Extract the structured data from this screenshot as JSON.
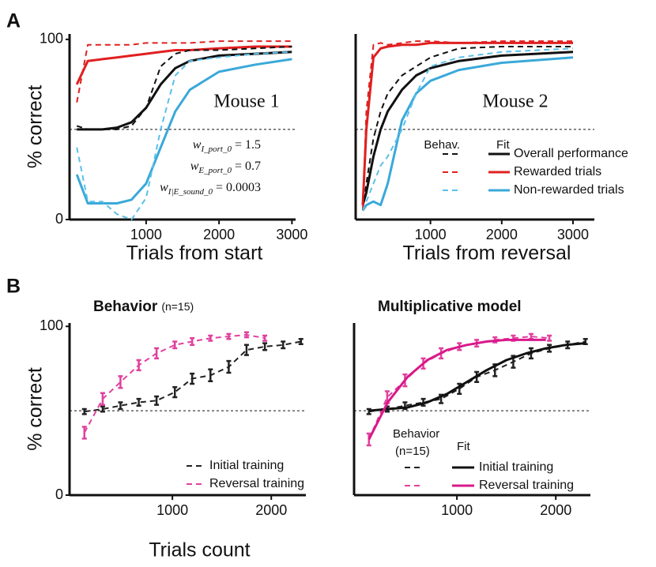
{
  "figure": {
    "panel_labels": [
      "A",
      "B"
    ]
  },
  "chart_data": [
    {
      "type": "line",
      "ylabel": "% correct",
      "xlabel": "Trials from start",
      "annotation": "Mouse 1",
      "weights": [
        {
          "symbol": "w",
          "subscript": "I_port_0",
          "rest": " = 1.5"
        },
        {
          "symbol": "w",
          "subscript": "E_port_0",
          "rest": " = 0.7"
        },
        {
          "symbol": "w",
          "subscript": "I|E_sound_0",
          "rest": " = 0.0003"
        }
      ],
      "xlim": [
        -50,
        3050
      ],
      "ylim": [
        0,
        103
      ],
      "xticks": [
        1000,
        2000,
        3000
      ],
      "yticks": [
        0,
        100
      ],
      "hline": 50,
      "x": [
        50,
        200,
        400,
        600,
        800,
        1000,
        1200,
        1400,
        1600,
        2000,
        2500,
        3000
      ],
      "series": [
        {
          "color": "#111111",
          "dashed": false,
          "values": [
            50,
            50,
            50,
            51,
            54,
            62,
            75,
            84,
            88,
            91,
            92,
            93
          ]
        },
        {
          "color": "#e02020",
          "dashed": false,
          "values": [
            75,
            88,
            89,
            90,
            91,
            92,
            93,
            94,
            94,
            95,
            96,
            96
          ]
        },
        {
          "color": "#3aa9d9",
          "dashed": false,
          "values": [
            25,
            9,
            9,
            9,
            11,
            20,
            40,
            60,
            72,
            82,
            86,
            89
          ]
        },
        {
          "color": "#111111",
          "dashed": true,
          "values": [
            52,
            50,
            50,
            50,
            52,
            62,
            85,
            92,
            94,
            94,
            95,
            96
          ]
        },
        {
          "color": "#e02020",
          "dashed": true,
          "values": [
            65,
            97,
            97,
            97,
            97,
            98,
            98,
            98,
            98,
            99,
            99,
            99
          ]
        },
        {
          "color": "#5bc0e8",
          "dashed": true,
          "values": [
            40,
            10,
            10,
            3,
            0,
            12,
            50,
            80,
            88,
            90,
            92,
            93
          ]
        }
      ]
    },
    {
      "type": "line",
      "xlabel": "Trials from reversal",
      "annotation": "Mouse 2",
      "legend_headers": [
        "Behav.",
        "Fit"
      ],
      "xlim": [
        -50,
        3300
      ],
      "ylim": [
        0,
        103
      ],
      "xticks": [
        1000,
        2000,
        3000
      ],
      "hline": 50,
      "x": [
        50,
        100,
        200,
        300,
        400,
        600,
        800,
        1000,
        1400,
        2000,
        3000
      ],
      "series": [
        {
          "name": "Overall performance",
          "color": "#111111",
          "dashed": false,
          "values": [
            8,
            15,
            35,
            50,
            60,
            72,
            80,
            84,
            88,
            91,
            93
          ]
        },
        {
          "name": "Rewarded trials",
          "color": "#e02020",
          "dashed": false,
          "values": [
            8,
            50,
            90,
            95,
            96,
            97,
            97,
            98,
            98,
            98,
            98
          ]
        },
        {
          "name": "Non-rewarded trials",
          "color": "#3aa9d9",
          "dashed": false,
          "values": [
            5,
            8,
            10,
            8,
            20,
            55,
            70,
            77,
            83,
            87,
            90
          ]
        },
        {
          "color": "#111111",
          "dashed": true,
          "values": [
            5,
            20,
            45,
            60,
            70,
            80,
            85,
            90,
            95,
            96,
            96
          ]
        },
        {
          "color": "#e02020",
          "dashed": true,
          "values": [
            5,
            60,
            97,
            98,
            97,
            98,
            99,
            99,
            98,
            99,
            99
          ]
        },
        {
          "color": "#5bc0e8",
          "dashed": true,
          "values": [
            5,
            10,
            20,
            30,
            35,
            50,
            70,
            85,
            90,
            93,
            95
          ]
        }
      ]
    },
    {
      "type": "line",
      "title": "Behavior",
      "subtitle": "(n=15)",
      "ylabel": "% correct",
      "xlabel": "Trials count",
      "xlim": [
        -40,
        2350
      ],
      "ylim": [
        0,
        102
      ],
      "xticks": [
        1000,
        2000
      ],
      "yticks": [
        0,
        100
      ],
      "hline": 50,
      "x": [
        110,
        295,
        475,
        660,
        840,
        1025,
        1200,
        1385,
        1570,
        1750,
        1935,
        2120,
        2300
      ],
      "series": [
        {
          "name": "Initial training",
          "color": "#222222",
          "dashed": true,
          "values": [
            49.5,
            51,
            53,
            55,
            56,
            61,
            69,
            71,
            76,
            86,
            88,
            89,
            91
          ],
          "errors": [
            1.5,
            1.5,
            2,
            2,
            2.5,
            3,
            3,
            3.5,
            3.5,
            3,
            2,
            2,
            1.5
          ]
        },
        {
          "name": "Reversal training",
          "color": "#e0409e",
          "dashed": true,
          "x": [
            110,
            295,
            475,
            660,
            840,
            1025,
            1200,
            1385,
            1570,
            1750,
            1935
          ],
          "values": [
            37,
            57,
            67,
            77,
            84,
            89,
            91,
            93,
            94,
            95,
            93
          ],
          "errors": [
            3.5,
            3.5,
            3.5,
            3,
            3,
            2,
            2,
            1.5,
            1.5,
            1.5,
            1.5
          ]
        }
      ]
    },
    {
      "type": "line",
      "title": "Multiplicative model",
      "legend_headers": [
        "Behavior",
        "(n=15)",
        "Fit"
      ],
      "xlim": [
        -40,
        2350
      ],
      "ylim": [
        0,
        102
      ],
      "xticks": [
        1000,
        2000
      ],
      "hline": 50,
      "x": [
        110,
        295,
        475,
        660,
        840,
        1025,
        1200,
        1385,
        1570,
        1750,
        1935,
        2120,
        2300
      ],
      "series": [
        {
          "color": "#222222",
          "dashed": true,
          "values": [
            49.5,
            51,
            53,
            55,
            57,
            63,
            70,
            74,
            79,
            84,
            87,
            89,
            91
          ],
          "errors": [
            1.5,
            1.5,
            2,
            2,
            2.5,
            3,
            3,
            3.5,
            3.5,
            3,
            2,
            2,
            1.5
          ]
        },
        {
          "color": "#e0409e",
          "dashed": true,
          "x": [
            110,
            295,
            475,
            660,
            840,
            1025,
            1200,
            1385,
            1570,
            1750,
            1935
          ],
          "values": [
            33,
            58,
            68,
            78,
            84,
            88,
            90,
            92,
            93,
            94,
            93
          ],
          "errors": [
            3.5,
            3.5,
            3.5,
            3,
            3,
            2,
            2,
            1.5,
            1.5,
            1.5,
            1.5
          ]
        },
        {
          "name": "Initial training",
          "color": "#111111",
          "dashed": false,
          "x": [
            110,
            300,
            500,
            700,
            900,
            1100,
            1300,
            1500,
            1700,
            1900,
            2100,
            2300
          ],
          "values": [
            50,
            51,
            52,
            55,
            60,
            67,
            74,
            80,
            84,
            87,
            89,
            90
          ]
        },
        {
          "name": "Reversal training",
          "color": "#d9198a",
          "dashed": false,
          "x": [
            110,
            300,
            500,
            700,
            900,
            1100,
            1300,
            1500,
            1700,
            1900
          ],
          "values": [
            33,
            55,
            70,
            80,
            86,
            89,
            91,
            92,
            92,
            92
          ]
        }
      ]
    }
  ]
}
